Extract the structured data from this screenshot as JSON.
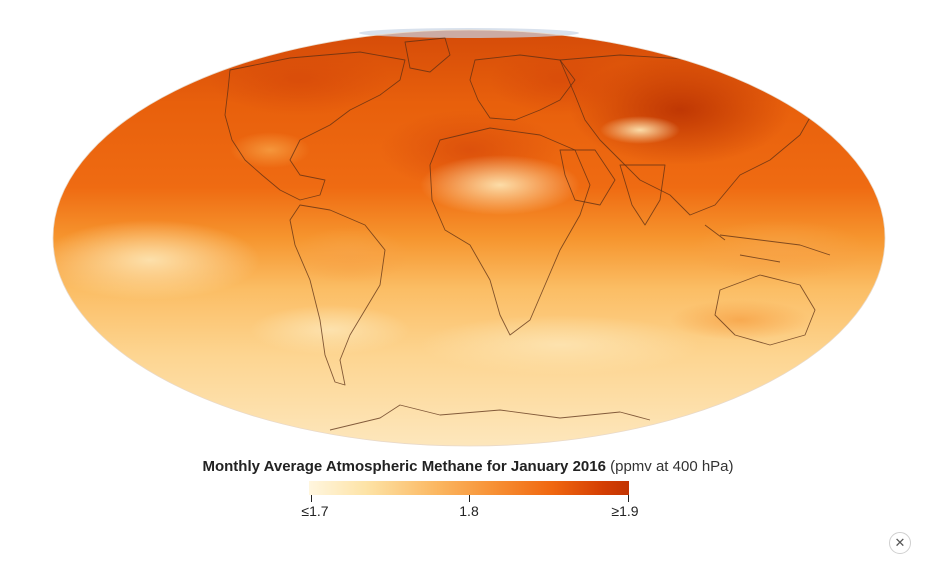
{
  "map": {
    "projection": "Mollweide",
    "colors": {
      "low": "#fff6df",
      "mid": "#f79034",
      "high": "#c23402",
      "coastline": "#5a2e14"
    }
  },
  "caption": {
    "title": "Monthly Average Atmospheric Methane for January 2016",
    "unit": "(ppmv at 400 hPa)"
  },
  "legend": {
    "ticks": [
      {
        "label": "≤1.7",
        "value": 1.7
      },
      {
        "label": "1.8",
        "value": 1.8
      },
      {
        "label": "≥1.9",
        "value": 1.9
      }
    ],
    "range": [
      1.7,
      1.9
    ]
  },
  "close_icon": "close-icon",
  "close_glyph": "✕"
}
